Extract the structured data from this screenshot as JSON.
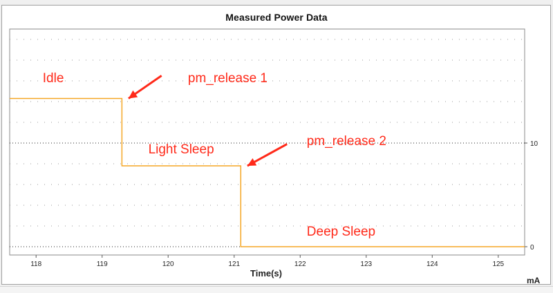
{
  "chart_data": {
    "type": "line",
    "title": "Measured Power Data",
    "xlabel": "Time(s)",
    "ylabel": "mA",
    "xlim": [
      117.6,
      125.4
    ],
    "ylim": [
      -0.8,
      21
    ],
    "x_ticks": [
      118,
      119,
      120,
      121,
      122,
      123,
      124,
      125
    ],
    "y_ticks": [
      0,
      10
    ],
    "y_axis_side": "right",
    "grid": true,
    "series": [
      {
        "color": "#f5a623",
        "x": [
          117.6,
          119.3,
          119.3,
          121.1,
          121.1,
          125.4
        ],
        "y": [
          14.3,
          14.3,
          7.8,
          7.8,
          0,
          0
        ]
      }
    ],
    "annotations": [
      {
        "text": "Idle",
        "x": 118.1,
        "y": 15.5
      },
      {
        "text": "pm_release 1",
        "x": 120.3,
        "y": 15.5
      },
      {
        "text": "Light Sleep",
        "x": 119.7,
        "y": 8.6
      },
      {
        "text": "pm_release 2",
        "x": 122.1,
        "y": 9.4
      },
      {
        "text": "Deep Sleep",
        "x": 122.1,
        "y": 0.7
      }
    ],
    "arrows": [
      {
        "from": [
          119.9,
          16.5
        ],
        "to": [
          119.4,
          14.3
        ]
      },
      {
        "from": [
          121.8,
          9.9
        ],
        "to": [
          121.2,
          7.8
        ]
      }
    ],
    "annotation_color": "#ff2a1a"
  }
}
